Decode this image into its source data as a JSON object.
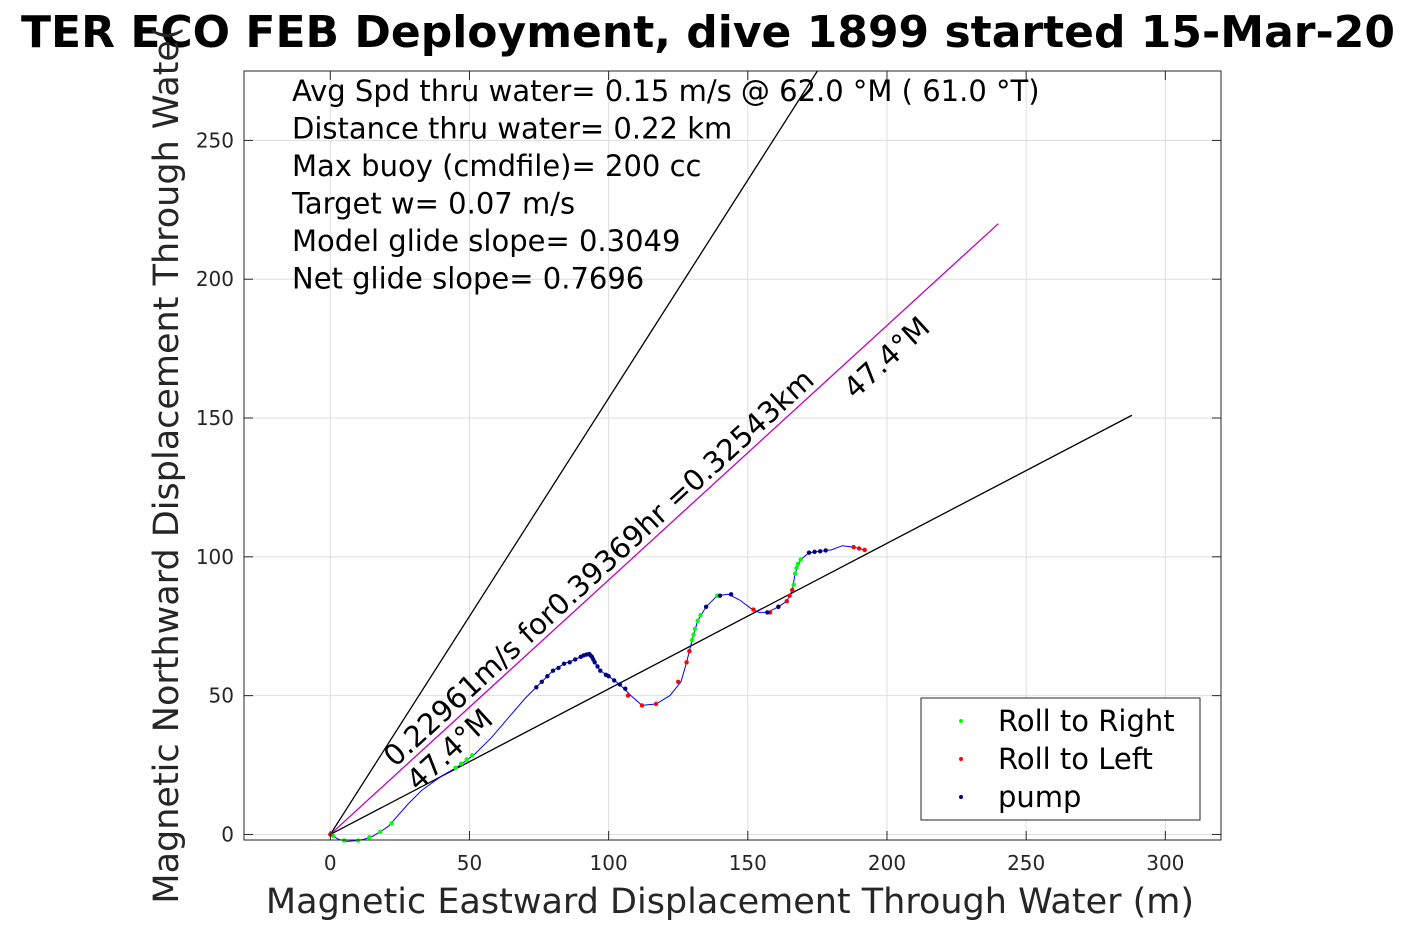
{
  "chart_data": {
    "type": "scatter",
    "title": "TER ECO FEB Deployment, dive 1899 started 15-Mar-20",
    "xlabel": "Magnetic Eastward Displacement Through Water (m)",
    "ylabel": "Magnetic Northward Displacement Through Wate(",
    "xlim": [
      -31,
      320
    ],
    "ylim": [
      -2,
      275
    ],
    "x_ticks": [
      0,
      50,
      100,
      150,
      200,
      250,
      300
    ],
    "y_ticks": [
      0,
      50,
      100,
      150,
      200,
      250
    ],
    "grid": true,
    "legend_position": "bottom-right",
    "colors": {
      "roll_right": "#00ff00",
      "roll_left": "#ff0000",
      "pump": "#000080",
      "track": "#0000ff",
      "heading_line": "#c000c0",
      "bound_line": "#000000"
    },
    "info_lines": [
      "Avg Spd thru water=  0.15 m/s @  62.0 °M ( 61.0 °T)",
      "Distance thru water=  0.22 km",
      "Max buoy (cmdfile)= 200 cc",
      "Target w= 0.07 m/s",
      "Model glide slope= 0.3049",
      "Net glide slope= 0.7696"
    ],
    "annotations": {
      "speed_label": "0.22961m/s for0.39369hr =0.32543km",
      "heading_label_upper": "47.4°M",
      "heading_label_lower": "47.4°M"
    },
    "reference_lines": [
      {
        "name": "steep bound",
        "color": "#000000",
        "points": [
          [
            0,
            0
          ],
          [
            175,
            275
          ]
        ]
      },
      {
        "name": "heading",
        "color": "#c000c0",
        "points": [
          [
            0,
            0
          ],
          [
            240,
            220
          ]
        ]
      },
      {
        "name": "shallow bound",
        "color": "#000000",
        "points": [
          [
            0,
            0
          ],
          [
            288,
            151
          ]
        ]
      }
    ],
    "track": [
      [
        0,
        0
      ],
      [
        3,
        -1.8
      ],
      [
        6,
        -2.5
      ],
      [
        9,
        -2.3
      ],
      [
        12,
        -1.8
      ],
      [
        15,
        -0.8
      ],
      [
        18,
        1
      ],
      [
        21,
        3
      ],
      [
        24,
        6.5
      ],
      [
        28,
        11
      ],
      [
        33,
        16
      ],
      [
        40,
        21
      ],
      [
        46,
        24.5
      ],
      [
        52,
        29
      ],
      [
        58,
        35
      ],
      [
        64,
        42
      ],
      [
        70,
        49
      ],
      [
        75,
        54
      ],
      [
        80,
        59
      ],
      [
        84,
        61.5
      ],
      [
        88,
        63
      ],
      [
        91,
        64.5
      ],
      [
        93,
        65
      ],
      [
        94,
        64
      ],
      [
        95,
        62
      ],
      [
        97,
        59
      ],
      [
        100,
        57
      ],
      [
        104,
        54
      ],
      [
        108,
        50
      ],
      [
        112,
        46.5
      ],
      [
        117,
        47
      ],
      [
        122,
        50
      ],
      [
        126,
        55
      ],
      [
        128,
        62
      ],
      [
        130,
        70
      ],
      [
        132,
        77
      ],
      [
        135,
        82
      ],
      [
        139,
        86
      ],
      [
        143,
        86.5
      ],
      [
        147,
        84.5
      ],
      [
        151,
        81.5
      ],
      [
        154,
        80
      ],
      [
        157,
        80
      ],
      [
        161,
        82
      ],
      [
        164,
        84
      ],
      [
        166,
        88
      ],
      [
        167,
        94
      ],
      [
        169,
        99
      ],
      [
        172,
        101.5
      ],
      [
        176,
        102
      ],
      [
        180,
        102.5
      ],
      [
        184,
        104
      ],
      [
        188,
        103.5
      ],
      [
        192,
        102.5
      ]
    ],
    "series": [
      {
        "name": "Roll to Right",
        "color": "#00ff00",
        "points": [
          [
            1,
            -0.5
          ],
          [
            5,
            -2.2
          ],
          [
            10,
            -2.2
          ],
          [
            14,
            -1
          ],
          [
            18,
            1
          ],
          [
            22,
            4
          ],
          [
            45,
            24
          ],
          [
            47,
            25.5
          ],
          [
            49,
            27
          ],
          [
            51,
            28.5
          ],
          [
            129,
            66
          ],
          [
            130,
            70
          ],
          [
            130.5,
            72
          ],
          [
            131,
            74
          ],
          [
            132,
            77
          ],
          [
            133,
            79
          ],
          [
            139,
            86
          ],
          [
            166,
            88
          ],
          [
            166.5,
            90
          ],
          [
            167,
            94
          ],
          [
            167.5,
            96
          ],
          [
            168,
            97.5
          ],
          [
            169,
            99
          ]
        ]
      },
      {
        "name": "Roll to Left",
        "color": "#ff0000",
        "points": [
          [
            0,
            0
          ],
          [
            107,
            50
          ],
          [
            112,
            46.5
          ],
          [
            117,
            47
          ],
          [
            125,
            55
          ],
          [
            128,
            62
          ],
          [
            129,
            66
          ],
          [
            152,
            81
          ],
          [
            158,
            80
          ],
          [
            161,
            82
          ],
          [
            164,
            84
          ],
          [
            165,
            86
          ],
          [
            166,
            88
          ],
          [
            188,
            103.5
          ],
          [
            190,
            103
          ],
          [
            192,
            102.5
          ]
        ]
      },
      {
        "name": "pump",
        "color": "#000080",
        "points": [
          [
            74,
            53
          ],
          [
            76,
            55
          ],
          [
            78,
            57
          ],
          [
            80,
            59
          ],
          [
            82,
            60
          ],
          [
            84,
            61.5
          ],
          [
            86,
            62
          ],
          [
            88,
            63
          ],
          [
            90,
            64
          ],
          [
            91,
            64.5
          ],
          [
            92,
            64.8
          ],
          [
            93,
            65
          ],
          [
            93.5,
            64.5
          ],
          [
            94,
            64
          ],
          [
            94.5,
            63
          ],
          [
            95,
            62
          ],
          [
            96,
            60.5
          ],
          [
            97,
            59
          ],
          [
            99,
            57.5
          ],
          [
            100,
            57
          ],
          [
            102,
            55.5
          ],
          [
            104,
            54
          ],
          [
            106,
            52.5
          ],
          [
            135,
            82
          ],
          [
            140,
            86
          ],
          [
            144,
            86.5
          ],
          [
            157,
            80
          ],
          [
            161,
            82
          ],
          [
            172,
            101.5
          ],
          [
            174,
            101.8
          ],
          [
            176,
            102
          ],
          [
            178,
            102.3
          ]
        ]
      }
    ]
  }
}
